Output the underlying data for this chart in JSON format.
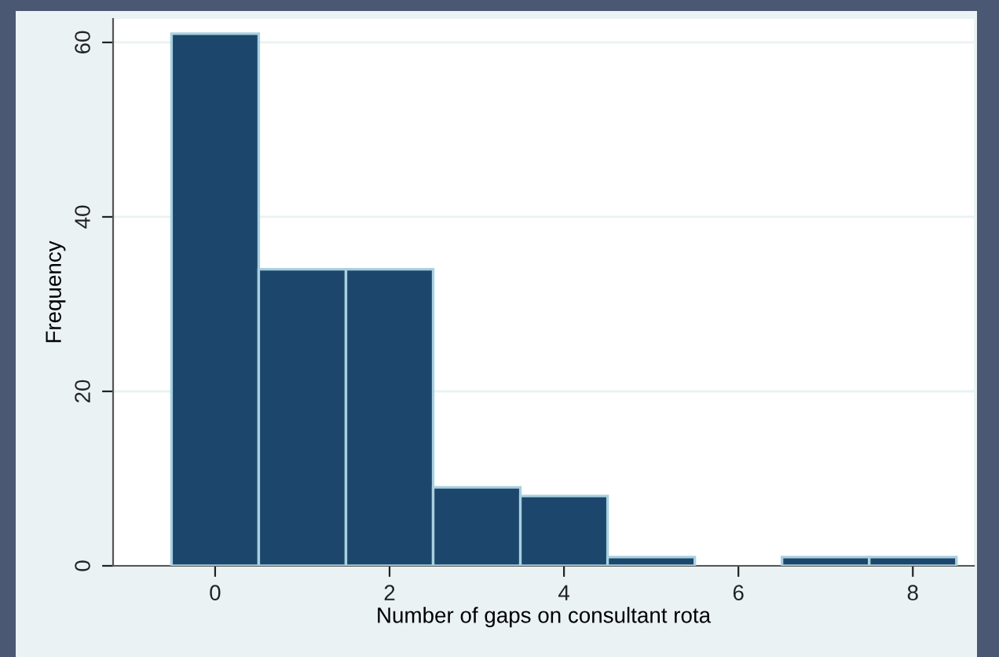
{
  "chart_data": {
    "type": "histogram",
    "xlabel": "Number of gaps on consultant rota",
    "ylabel": "Frequency",
    "bins": [
      -0.5,
      0.5,
      1.5,
      2.5,
      3.5,
      4.5,
      5.5,
      6.5,
      7.5,
      8.5
    ],
    "values": [
      61,
      34,
      34,
      9,
      8,
      1,
      0,
      1,
      1
    ],
    "color": "#1c466b",
    "xlim": [
      -1.17,
      8.7
    ],
    "ylim": [
      0,
      62.7
    ],
    "xticks": [
      0,
      2,
      4,
      6,
      8
    ],
    "yticks": [
      0,
      20,
      40,
      60
    ],
    "grid": "y"
  }
}
